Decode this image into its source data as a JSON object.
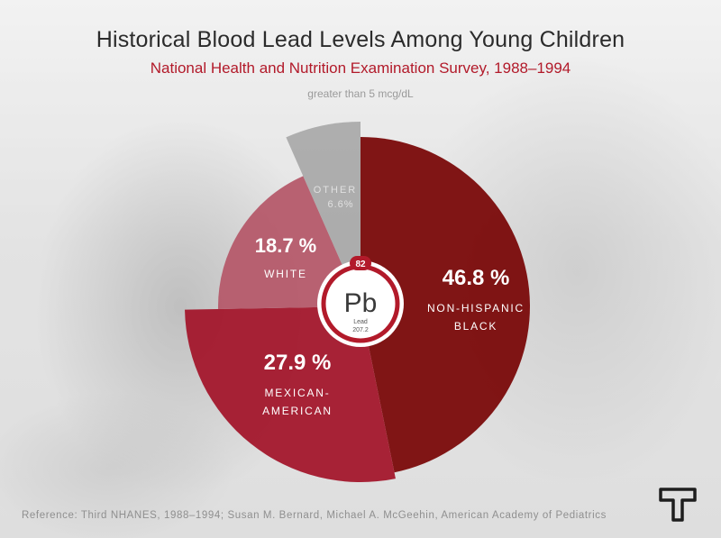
{
  "header": {
    "title": "Historical Blood Lead Levels Among Young Children",
    "subtitle": "National Health and Nutrition Examination Survey, 1988–1994",
    "note": "greater than 5 mcg/dL"
  },
  "chart_data": {
    "type": "pie",
    "title": "Historical Blood Lead Levels Among Young Children",
    "subtitle": "National Health and Nutrition Examination Survey, 1988–1994",
    "slices": [
      {
        "name": "NON-HISPANIC BLACK",
        "label_lines": [
          "NON-HISPANIC",
          "BLACK"
        ],
        "value": 46.8,
        "value_label": "46.8 %",
        "color": "#7a0a0a",
        "value_color": "#ffffff",
        "name_color": "#ffffff"
      },
      {
        "name": "MEXICAN-AMERICAN",
        "label_lines": [
          "MEXICAN-",
          "AMERICAN"
        ],
        "value": 27.9,
        "value_label": "27.9 %",
        "color": "#a3172c",
        "value_color": "#ffffff",
        "name_color": "#ffffff"
      },
      {
        "name": "WHITE",
        "label_lines": [
          "WHITE"
        ],
        "value": 18.7,
        "value_label": "18.7 %",
        "color": "#b55a6a",
        "value_color": "#ffffff",
        "name_color": "#ffffff"
      },
      {
        "name": "OTHER",
        "label_lines": [
          "OTHER"
        ],
        "value": 6.6,
        "value_label": "6.6%",
        "color": "#9a9a9a",
        "value_color": "#e0e0e0",
        "name_color": "#e0e0e0"
      }
    ],
    "variable_radius": true,
    "legend": "none"
  },
  "element_badge": {
    "atomic_number": "82",
    "symbol": "Pb",
    "name": "Lead",
    "atomic_mass": "207.2",
    "color": "#b21a2a"
  },
  "footer": {
    "reference": "Reference: Third NHANES, 1988–1994; Susan M. Bernard, Michael A. McGeehin, American Academy of Pediatrics"
  },
  "brand": {
    "icon": "t-logo-icon"
  }
}
